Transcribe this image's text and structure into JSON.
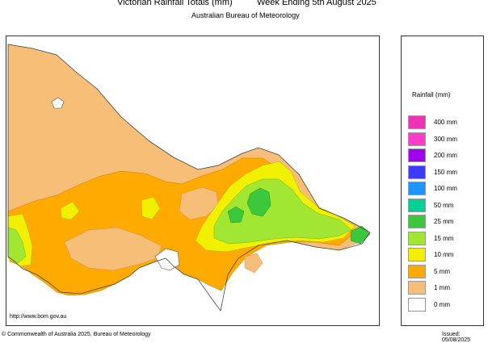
{
  "header": {
    "title": "Victorian Rainfall Totals (mm)",
    "period": "Week Ending 5th August 2025",
    "subtitle": "Australian Bureau of Meteorology"
  },
  "legend": {
    "title": "Rainfall (mm)",
    "items": [
      {
        "label": "400 mm",
        "color": "#f032b4"
      },
      {
        "label": "300 mm",
        "color": "#ff3cc8"
      },
      {
        "label": "200 mm",
        "color": "#a000f0"
      },
      {
        "label": "150 mm",
        "color": "#3c3cff"
      },
      {
        "label": "100 mm",
        "color": "#1e96ff"
      },
      {
        "label": "50 mm",
        "color": "#00d296"
      },
      {
        "label": "25 mm",
        "color": "#3cc83c"
      },
      {
        "label": "15 mm",
        "color": "#a0e632"
      },
      {
        "label": "10 mm",
        "color": "#f0f000"
      },
      {
        "label": "5 mm",
        "color": "#ffaa00"
      },
      {
        "label": "1 mm",
        "color": "#f7be78"
      },
      {
        "label": "0 mm",
        "color": "#ffffff"
      }
    ]
  },
  "footer": {
    "url": "http://www.bom.gov.au",
    "copyright": "© Commonwealth of Australia 2025, Bureau of Meteorology",
    "issued": "Issued: 05/08/2025"
  }
}
